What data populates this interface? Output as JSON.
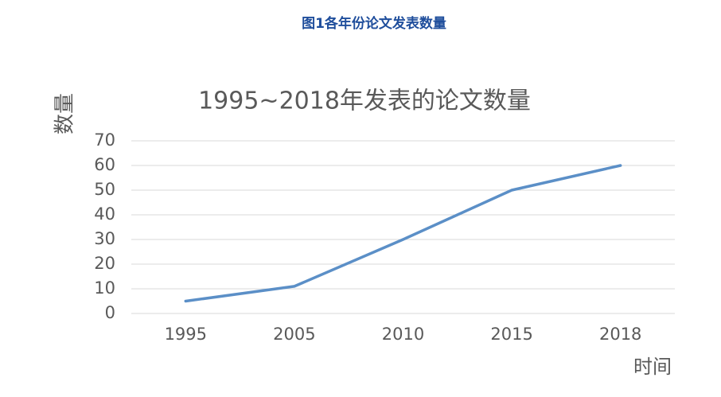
{
  "caption": "图1各年份论文发表数量",
  "chart_data": {
    "type": "line",
    "title": "1995~2018年发表的论文数量",
    "x_label": "时间",
    "y_label": "数量",
    "categories": [
      "1995",
      "2005",
      "2010",
      "2015",
      "2018"
    ],
    "values": [
      5,
      11,
      30,
      50,
      60
    ],
    "color": "#5b8fc7",
    "ylim": [
      0,
      70
    ],
    "yticks": [
      0,
      10,
      20,
      30,
      40,
      50,
      60,
      70
    ],
    "grid": true
  }
}
